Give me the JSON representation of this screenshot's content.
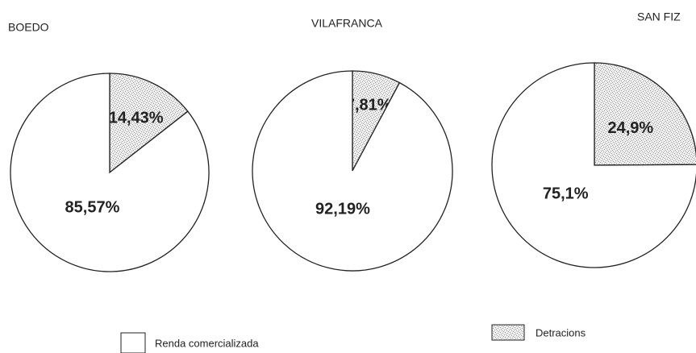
{
  "chart_data": [
    {
      "type": "pie",
      "title": "BOEDO",
      "categories": [
        "Renda comercializada",
        "Detracions"
      ],
      "values": [
        85.57,
        14.43
      ],
      "value_labels": [
        "85,57%",
        "14,43%"
      ],
      "colors": [
        "#ffffff",
        "#9a9a9a"
      ]
    },
    {
      "type": "pie",
      "title": "VILAFRANCA",
      "categories": [
        "Renda comercializada",
        "Detracions"
      ],
      "values": [
        92.19,
        7.81
      ],
      "value_labels": [
        "92,19%",
        "7,81%"
      ],
      "colors": [
        "#ffffff",
        "#9a9a9a"
      ]
    },
    {
      "type": "pie",
      "title": "SAN FIZ",
      "categories": [
        "Renda comercializada",
        "Detracions"
      ],
      "values": [
        75.1,
        24.9
      ],
      "value_labels": [
        "75,1%",
        "24,9%"
      ],
      "colors": [
        "#ffffff",
        "#9a9a9a"
      ]
    }
  ]
}
